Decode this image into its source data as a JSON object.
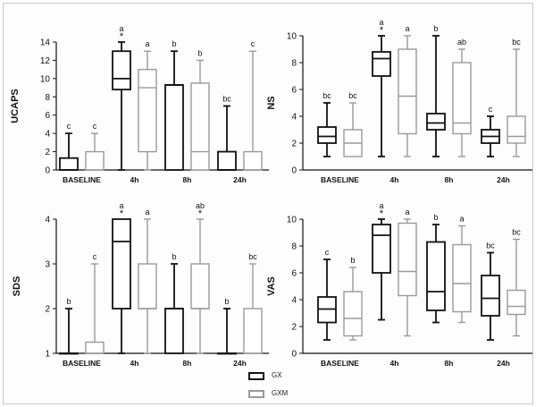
{
  "legend": [
    {
      "label": "GX",
      "color": "#111111"
    },
    {
      "label": "GXM",
      "color": "#9a9a9a"
    }
  ],
  "chart_data": [
    {
      "type": "box",
      "ylabel": "UCAPS",
      "ylim": [
        0,
        14
      ],
      "yticks": [
        0,
        2,
        4,
        6,
        8,
        10,
        12,
        14
      ],
      "categories": [
        "BASELINE",
        "4h",
        "8h",
        "24h"
      ],
      "series": [
        {
          "name": "GX",
          "color": "#111111",
          "boxes": [
            {
              "min": 0,
              "q1": 0,
              "median": 0,
              "q3": 1.3,
              "max": 4
            },
            {
              "min": 0,
              "q1": 8.8,
              "median": 10,
              "q3": 13,
              "max": 14
            },
            {
              "min": 0,
              "q1": 0,
              "median": 9.3,
              "q3": 9.3,
              "max": 13
            },
            {
              "min": 0,
              "q1": 0,
              "median": 0,
              "q3": 2,
              "max": 7
            }
          ],
          "letters": [
            "c",
            "a",
            "b",
            "bc"
          ],
          "stars": [
            false,
            true,
            false,
            false
          ]
        },
        {
          "name": "GXM",
          "color": "#9a9a9a",
          "boxes": [
            {
              "min": 0,
              "q1": 0,
              "median": 0,
              "q3": 2,
              "max": 4
            },
            {
              "min": 0,
              "q1": 2,
              "median": 9,
              "q3": 11,
              "max": 13
            },
            {
              "min": 0,
              "q1": 0,
              "median": 2,
              "q3": 9.5,
              "max": 12
            },
            {
              "min": 0,
              "q1": 0,
              "median": 0,
              "q3": 2,
              "max": 13
            }
          ],
          "letters": [
            "c",
            "a",
            "b",
            "c"
          ],
          "stars": [
            false,
            false,
            false,
            false
          ]
        }
      ]
    },
    {
      "type": "box",
      "ylabel": "NS",
      "ylim": [
        0,
        10
      ],
      "yticks": [
        0,
        2,
        4,
        6,
        8,
        10
      ],
      "categories": [
        "BASELINE",
        "4h",
        "8h",
        "24h"
      ],
      "series": [
        {
          "name": "GX",
          "color": "#111111",
          "boxes": [
            {
              "min": 1,
              "q1": 2,
              "median": 2.5,
              "q3": 3.2,
              "max": 5
            },
            {
              "min": 1,
              "q1": 7,
              "median": 8.3,
              "q3": 8.8,
              "max": 10
            },
            {
              "min": 1,
              "q1": 3,
              "median": 3.5,
              "q3": 4.2,
              "max": 10
            },
            {
              "min": 1,
              "q1": 2,
              "median": 2.5,
              "q3": 3,
              "max": 4
            }
          ],
          "letters": [
            "bc",
            "a",
            "b",
            "c"
          ],
          "stars": [
            false,
            true,
            false,
            false
          ]
        },
        {
          "name": "GXM",
          "color": "#9a9a9a",
          "boxes": [
            {
              "min": 1,
              "q1": 1,
              "median": 2,
              "q3": 3,
              "max": 5
            },
            {
              "min": 1,
              "q1": 2.7,
              "median": 5.5,
              "q3": 9,
              "max": 10
            },
            {
              "min": 1,
              "q1": 2.7,
              "median": 3.5,
              "q3": 8,
              "max": 9
            },
            {
              "min": 1,
              "q1": 2,
              "median": 2.5,
              "q3": 4,
              "max": 9
            }
          ],
          "letters": [
            "bc",
            "a",
            "ab",
            "bc"
          ],
          "stars": [
            false,
            false,
            false,
            false
          ]
        }
      ]
    },
    {
      "type": "box",
      "ylabel": "SDS",
      "ylim": [
        1,
        4
      ],
      "yticks": [
        1,
        2,
        3,
        4
      ],
      "categories": [
        "BASELINE",
        "4h",
        "8h",
        "24h"
      ],
      "series": [
        {
          "name": "GX",
          "color": "#111111",
          "boxes": [
            {
              "min": 1,
              "q1": 1,
              "median": 1,
              "q3": 1,
              "max": 2
            },
            {
              "min": 1,
              "q1": 2,
              "median": 3.5,
              "q3": 4,
              "max": 4
            },
            {
              "min": 1,
              "q1": 1,
              "median": 2,
              "q3": 2,
              "max": 3
            },
            {
              "min": 1,
              "q1": 1,
              "median": 1,
              "q3": 1,
              "max": 2
            }
          ],
          "letters": [
            "b",
            "a",
            "b",
            "b"
          ],
          "stars": [
            false,
            true,
            false,
            false
          ]
        },
        {
          "name": "GXM",
          "color": "#9a9a9a",
          "boxes": [
            {
              "min": 1,
              "q1": 1,
              "median": 1,
              "q3": 1.25,
              "max": 3
            },
            {
              "min": 1,
              "q1": 2,
              "median": 2,
              "q3": 3,
              "max": 4
            },
            {
              "min": 1,
              "q1": 2,
              "median": 2,
              "q3": 3,
              "max": 4
            },
            {
              "min": 1,
              "q1": 1,
              "median": 1,
              "q3": 2,
              "max": 3
            }
          ],
          "letters": [
            "c",
            "a",
            "ab",
            "bc"
          ],
          "stars": [
            false,
            false,
            true,
            false
          ]
        }
      ]
    },
    {
      "type": "box",
      "ylabel": "VAS",
      "ylim": [
        0,
        10
      ],
      "yticks": [
        0,
        2,
        4,
        6,
        8,
        10
      ],
      "categories": [
        "BASELINE",
        "4h",
        "8h",
        "24h"
      ],
      "series": [
        {
          "name": "GX",
          "color": "#111111",
          "boxes": [
            {
              "min": 1,
              "q1": 2.3,
              "median": 3.3,
              "q3": 4.2,
              "max": 7
            },
            {
              "min": 2.5,
              "q1": 6,
              "median": 8.8,
              "q3": 9.6,
              "max": 10
            },
            {
              "min": 2.3,
              "q1": 3.2,
              "median": 4.6,
              "q3": 8.3,
              "max": 9.6
            },
            {
              "min": 1,
              "q1": 2.8,
              "median": 4.1,
              "q3": 5.8,
              "max": 7.5
            }
          ],
          "letters": [
            "c",
            "a",
            "b",
            "bc"
          ],
          "stars": [
            false,
            true,
            false,
            false
          ]
        },
        {
          "name": "GXM",
          "color": "#9a9a9a",
          "boxes": [
            {
              "min": 1,
              "q1": 1.3,
              "median": 2.6,
              "q3": 4.6,
              "max": 6.4
            },
            {
              "min": 1.3,
              "q1": 4.3,
              "median": 6.1,
              "q3": 9.7,
              "max": 10
            },
            {
              "min": 2.3,
              "q1": 3.1,
              "median": 5.2,
              "q3": 8.1,
              "max": 9.5
            },
            {
              "min": 1.3,
              "q1": 2.9,
              "median": 3.5,
              "q3": 4.7,
              "max": 8.5
            }
          ],
          "letters": [
            "b",
            "a",
            "a",
            "bc"
          ],
          "stars": [
            false,
            false,
            false,
            false
          ]
        }
      ]
    }
  ]
}
